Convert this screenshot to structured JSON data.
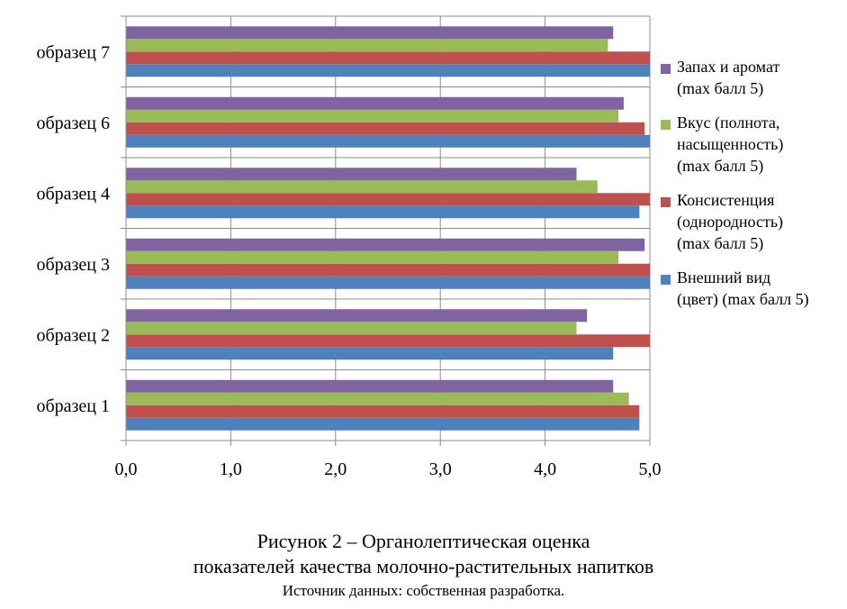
{
  "chart_data": {
    "type": "bar",
    "orientation": "horizontal",
    "categories": [
      "образец 1",
      "образец 2",
      "образец 3",
      "образец 4",
      "образец 6",
      "образец 7"
    ],
    "series": [
      {
        "name": "Внешний вид (цвет) (max балл 5)",
        "color": "#4f81bd",
        "values": [
          4.9,
          4.65,
          5.0,
          4.9,
          5.0,
          5.0
        ]
      },
      {
        "name": "Консистенция (однородность) (max балл 5)",
        "color": "#c0504d",
        "values": [
          4.9,
          5.0,
          5.0,
          5.0,
          4.95,
          5.0
        ]
      },
      {
        "name": "Вкус (полнота, насыщенность) (max балл 5)",
        "color": "#9bbb59",
        "values": [
          4.8,
          4.3,
          4.7,
          4.5,
          4.7,
          4.6
        ]
      },
      {
        "name": "Запах и аромат (max балл 5)",
        "color": "#8064a2",
        "values": [
          4.65,
          4.4,
          4.95,
          4.3,
          4.75,
          4.65
        ]
      }
    ],
    "xlim": [
      0,
      5
    ],
    "xticks": [
      "0,0",
      "1,0",
      "2,0",
      "3,0",
      "4,0",
      "5,0"
    ],
    "grid": "vertical",
    "legend": "right"
  },
  "legend": {
    "items": [
      {
        "lines": [
          "Запах и аромат",
          "(max балл 5)"
        ],
        "color": "#8064a2"
      },
      {
        "lines": [
          "Вкус (полнота,",
          "насыщенность)",
          "(max балл 5)"
        ],
        "color": "#9bbb59"
      },
      {
        "lines": [
          "Консистенция",
          "(однородность)",
          "(max балл 5)"
        ],
        "color": "#c0504d"
      },
      {
        "lines": [
          "Внешний вид",
          "(цвет) (max балл 5)"
        ],
        "color": "#4f81bd"
      }
    ]
  },
  "caption": {
    "line1": "Рисунок 2 – Органолептическая оценка",
    "line2": "показателей качества молочно-растительных напитков",
    "source": "Источник данных: собственная разработка."
  }
}
